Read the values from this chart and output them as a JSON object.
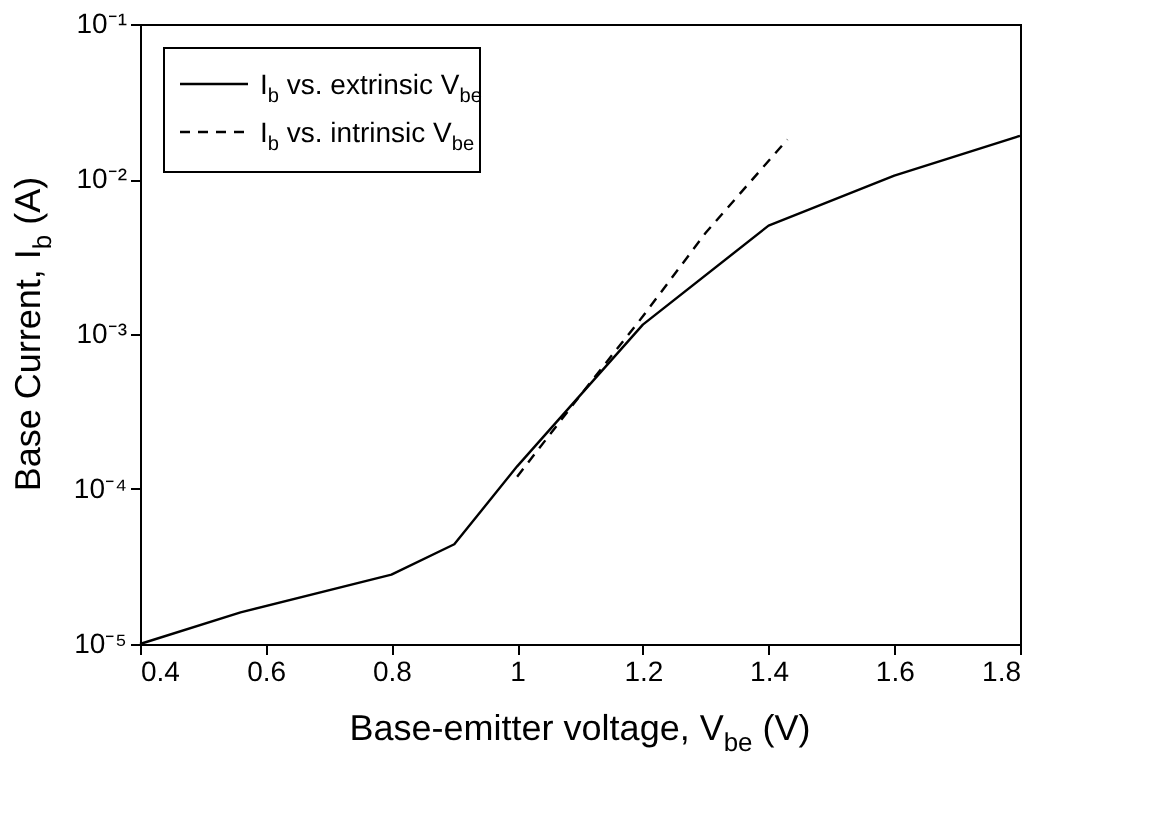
{
  "chart_data": {
    "type": "line",
    "xlabel": "Base-emitter voltage, V$_{be}$ (V)",
    "ylabel": "Base Current, I$_{b}$ (A)",
    "log": "y",
    "xlim": [
      0.4,
      1.8
    ],
    "xticks": [
      0.4,
      0.6,
      0.8,
      {
        "value": 1,
        "label": "1"
      },
      1.2,
      1.4,
      1.6,
      1.8
    ],
    "ylim": [
      1e-05,
      0.1
    ],
    "yticks": [
      {
        "value": 1e-05,
        "label": "10⁻⁵"
      },
      {
        "value": 0.0001,
        "label": "10⁻⁴"
      },
      {
        "value": 0.001,
        "label": "10⁻³"
      },
      {
        "value": 0.01,
        "label": "10⁻²"
      },
      {
        "value": 0.1,
        "label": "10⁻¹"
      }
    ],
    "grid": false,
    "legend": "top left",
    "marker": "none",
    "series": [
      {
        "name": "I$_{b}$ vs. extrinsic V$_{be}$",
        "color": "#000000",
        "line_style": "solid",
        "x": [
          0.4,
          0.56,
          0.8,
          0.9,
          1.0,
          1.2,
          1.4,
          1.6,
          1.8
        ],
        "values": [
          1e-05,
          1.6e-05,
          2.8e-05,
          4.4e-05,
          0.00014,
          0.00115,
          0.005,
          0.0105,
          0.019
        ]
      },
      {
        "name": "I$_{b}$ vs. intrinsic V$_{be}$",
        "color": "#000000",
        "line_style": "dashed",
        "x": [
          1.0,
          1.1,
          1.2,
          1.3,
          1.43
        ],
        "values": [
          0.00012,
          0.0004,
          0.0013,
          0.0045,
          0.018
        ]
      }
    ]
  }
}
